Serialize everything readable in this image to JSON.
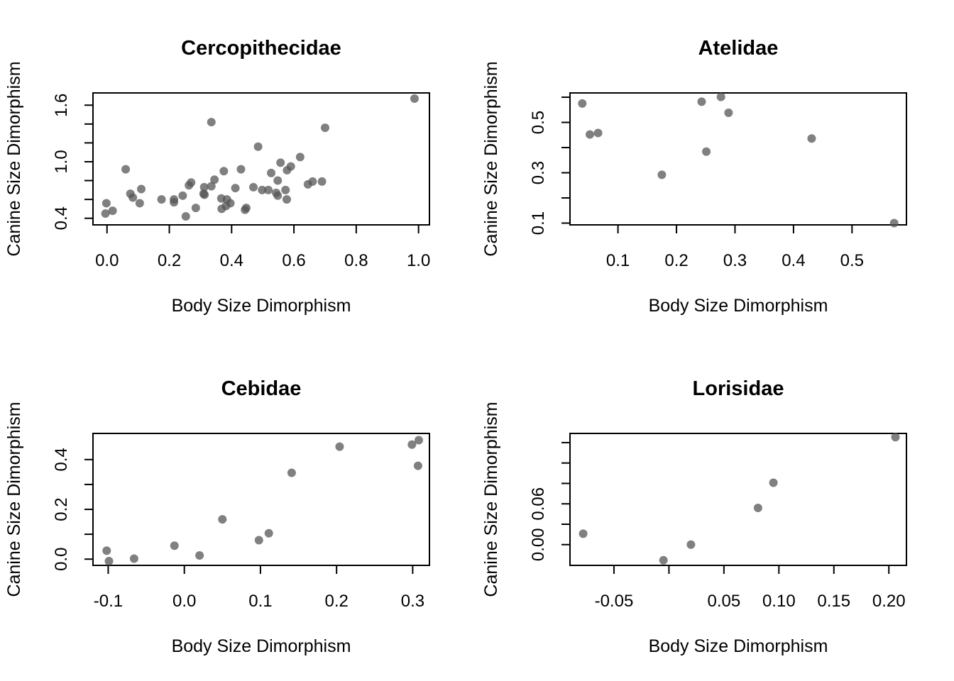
{
  "chart_data": [
    {
      "type": "scatter",
      "title": "Cercopithecidae",
      "xlabel": "Body Size Dimorphism",
      "ylabel": "Canine Size Dimorphism",
      "xlim": [
        -0.045,
        1.035
      ],
      "ylim": [
        0.33,
        1.73
      ],
      "xticks": [
        0.0,
        0.2,
        0.4,
        0.6,
        0.8,
        1.0
      ],
      "xtick_labels": [
        "0.0",
        "0.2",
        "0.4",
        "0.6",
        "0.8",
        "1.0"
      ],
      "yticks": [
        0.4,
        0.6,
        0.8,
        1.0,
        1.2,
        1.4,
        1.6
      ],
      "ytick_labels": [
        "0.4",
        "",
        "",
        "1.0",
        "",
        "",
        "1.6"
      ],
      "point_color": "#555555",
      "points": [
        [
          0.987,
          1.67
        ],
        [
          0.335,
          1.42
        ],
        [
          0.7,
          1.36
        ],
        [
          0.485,
          1.16
        ],
        [
          0.62,
          1.05
        ],
        [
          0.557,
          0.99
        ],
        [
          0.06,
          0.92
        ],
        [
          0.43,
          0.92
        ],
        [
          0.59,
          0.95
        ],
        [
          0.578,
          0.91
        ],
        [
          0.375,
          0.9
        ],
        [
          0.527,
          0.88
        ],
        [
          0.345,
          0.81
        ],
        [
          0.548,
          0.8
        ],
        [
          0.27,
          0.78
        ],
        [
          0.263,
          0.75
        ],
        [
          0.66,
          0.79
        ],
        [
          0.69,
          0.79
        ],
        [
          0.645,
          0.76
        ],
        [
          0.47,
          0.73
        ],
        [
          0.335,
          0.74
        ],
        [
          0.312,
          0.73
        ],
        [
          0.412,
          0.72
        ],
        [
          0.11,
          0.71
        ],
        [
          0.498,
          0.7
        ],
        [
          0.518,
          0.7
        ],
        [
          0.573,
          0.7
        ],
        [
          0.31,
          0.66
        ],
        [
          0.313,
          0.65
        ],
        [
          0.075,
          0.66
        ],
        [
          0.543,
          0.67
        ],
        [
          0.548,
          0.64
        ],
        [
          0.243,
          0.64
        ],
        [
          0.083,
          0.62
        ],
        [
          0.577,
          0.6
        ],
        [
          0.175,
          0.6
        ],
        [
          0.215,
          0.6
        ],
        [
          0.367,
          0.61
        ],
        [
          0.385,
          0.6
        ],
        [
          0.215,
          0.57
        ],
        [
          -0.002,
          0.56
        ],
        [
          0.105,
          0.56
        ],
        [
          0.396,
          0.56
        ],
        [
          0.382,
          0.53
        ],
        [
          0.285,
          0.51
        ],
        [
          0.447,
          0.51
        ],
        [
          0.368,
          0.5
        ],
        [
          0.443,
          0.49
        ],
        [
          0.018,
          0.48
        ],
        [
          -0.005,
          0.45
        ],
        [
          0.253,
          0.42
        ]
      ]
    },
    {
      "type": "scatter",
      "title": "Atelidae",
      "xlabel": "Body Size Dimorphism",
      "ylabel": "Canine Size Dimorphism",
      "xlim": [
        0.018,
        0.593
      ],
      "ylim": [
        0.093,
        0.617
      ],
      "xticks": [
        0.1,
        0.2,
        0.3,
        0.4,
        0.5
      ],
      "xtick_labels": [
        "0.1",
        "0.2",
        "0.3",
        "0.4",
        "0.5"
      ],
      "yticks": [
        0.1,
        0.2,
        0.3,
        0.4,
        0.5,
        0.6
      ],
      "ytick_labels": [
        "0.1",
        "",
        "0.3",
        "",
        "0.5",
        ""
      ],
      "point_color": "#555555",
      "points": [
        [
          0.276,
          0.601
        ],
        [
          0.243,
          0.582
        ],
        [
          0.039,
          0.575
        ],
        [
          0.289,
          0.538
        ],
        [
          0.066,
          0.458
        ],
        [
          0.052,
          0.452
        ],
        [
          0.431,
          0.436
        ],
        [
          0.251,
          0.384
        ],
        [
          0.175,
          0.292
        ],
        [
          0.572,
          0.1
        ]
      ]
    },
    {
      "type": "scatter",
      "title": "Cebidae",
      "xlabel": "Body Size Dimorphism",
      "ylabel": "Canine Size Dimorphism",
      "xlim": [
        -0.12,
        0.322
      ],
      "ylim": [
        -0.025,
        0.505
      ],
      "xticks": [
        -0.1,
        0.0,
        0.1,
        0.2,
        0.3
      ],
      "xtick_labels": [
        "-0.1",
        "0.0",
        "0.1",
        "0.2",
        "0.3"
      ],
      "yticks": [
        0.0,
        0.1,
        0.2,
        0.3,
        0.4
      ],
      "ytick_labels": [
        "0.0",
        "",
        "0.2",
        "",
        "0.4"
      ],
      "point_color": "#555555",
      "points": [
        [
          0.308,
          0.478
        ],
        [
          0.299,
          0.46
        ],
        [
          0.204,
          0.452
        ],
        [
          0.307,
          0.375
        ],
        [
          0.141,
          0.347
        ],
        [
          0.05,
          0.16
        ],
        [
          0.111,
          0.104
        ],
        [
          0.098,
          0.076
        ],
        [
          -0.013,
          0.054
        ],
        [
          -0.102,
          0.034
        ],
        [
          0.02,
          0.015
        ],
        [
          -0.066,
          0.002
        ],
        [
          -0.099,
          -0.008
        ]
      ]
    },
    {
      "type": "scatter",
      "title": "Lorisidae",
      "xlabel": "Body Size Dimorphism",
      "ylabel": "Canine Size Dimorphism",
      "xlim": [
        -0.09,
        0.216
      ],
      "ylim": [
        -0.0305,
        0.1635
      ],
      "xticks": [
        -0.05,
        0.0,
        0.05,
        0.1,
        0.15,
        0.2
      ],
      "xtick_labels": [
        "-0.05",
        "",
        "0.05",
        "0.10",
        "0.15",
        "0.20"
      ],
      "yticks": [
        0.0,
        0.03,
        0.06,
        0.09,
        0.12,
        0.15
      ],
      "ytick_labels": [
        "0.00",
        "",
        "0.06",
        "",
        "",
        ""
      ],
      "point_color": "#555555",
      "points": [
        [
          0.206,
          0.158
        ],
        [
          0.095,
          0.091
        ],
        [
          0.081,
          0.054
        ],
        [
          0.02,
          0.0
        ],
        [
          -0.078,
          0.016
        ],
        [
          -0.005,
          -0.023
        ]
      ]
    }
  ]
}
